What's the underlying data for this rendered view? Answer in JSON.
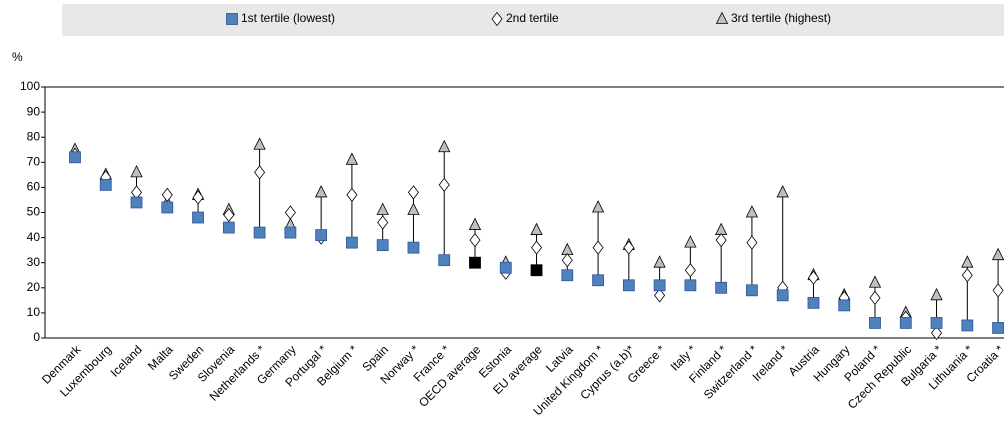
{
  "chart_data": {
    "type": "range-dot",
    "y_unit": "%",
    "categories": [
      "Denmark",
      "Luxembourg",
      "Iceland",
      "Malta",
      "Sweden",
      "Slovenia",
      "Netherlands *",
      "Germany",
      "Portugal *",
      "Belgium *",
      "Spain",
      "Norway *",
      "France *",
      "OECD average",
      "Estonia",
      "EU average",
      "Latvia",
      "United Kingdom *",
      "Cyprus (a,b)*",
      "Greece *",
      "Italy *",
      "Finland *",
      "Switzerland *",
      "Ireland *",
      "Austria",
      "Hungary",
      "Poland *",
      "Czech Republic",
      "Bulgaria *",
      "Lithuania *",
      "Croatia *"
    ],
    "series": [
      {
        "name": "1st tertile (lowest)",
        "marker": "square",
        "color": "#4f81bd",
        "point_colors": [
          "#4f81bd",
          "#4f81bd",
          "#4f81bd",
          "#4f81bd",
          "#4f81bd",
          "#4f81bd",
          "#4f81bd",
          "#4f81bd",
          "#4f81bd",
          "#4f81bd",
          "#4f81bd",
          "#4f81bd",
          "#4f81bd",
          "#000000",
          "#4f81bd",
          "#000000",
          "#4f81bd",
          "#4f81bd",
          "#4f81bd",
          "#4f81bd",
          "#4f81bd",
          "#4f81bd",
          "#4f81bd",
          "#4f81bd",
          "#4f81bd",
          "#4f81bd",
          "#4f81bd",
          "#4f81bd",
          "#4f81bd",
          "#4f81bd",
          "#4f81bd"
        ],
        "values": [
          72,
          61,
          54,
          52,
          48,
          44,
          42,
          42,
          41,
          38,
          37,
          36,
          31,
          30,
          28,
          27,
          25,
          23,
          21,
          21,
          21,
          20,
          19,
          17,
          14,
          13,
          6,
          6,
          6,
          5,
          4
        ]
      },
      {
        "name": "2nd tertile",
        "marker": "diamond",
        "color": "#ffffff",
        "values": [
          73,
          64,
          58,
          57,
          56,
          49,
          66,
          50,
          40,
          57,
          46,
          58,
          61,
          39,
          26,
          36,
          31,
          36,
          36,
          17,
          27,
          39,
          38,
          20,
          24,
          16,
          16,
          8,
          2,
          25,
          19
        ]
      },
      {
        "name": "3rd tertile (highest)",
        "marker": "triangle",
        "color": "#bfbfbf",
        "values": [
          75,
          65,
          66,
          54,
          57,
          51,
          77,
          45,
          58,
          71,
          51,
          51,
          76,
          45,
          30,
          43,
          35,
          52,
          37,
          30,
          38,
          43,
          50,
          58,
          25,
          17,
          22,
          10,
          17,
          30,
          33
        ]
      }
    ],
    "ylim": [
      0,
      100
    ],
    "yticks": [
      0,
      10,
      20,
      30,
      40,
      50,
      60,
      70,
      80,
      90,
      100
    ],
    "grid": false
  }
}
